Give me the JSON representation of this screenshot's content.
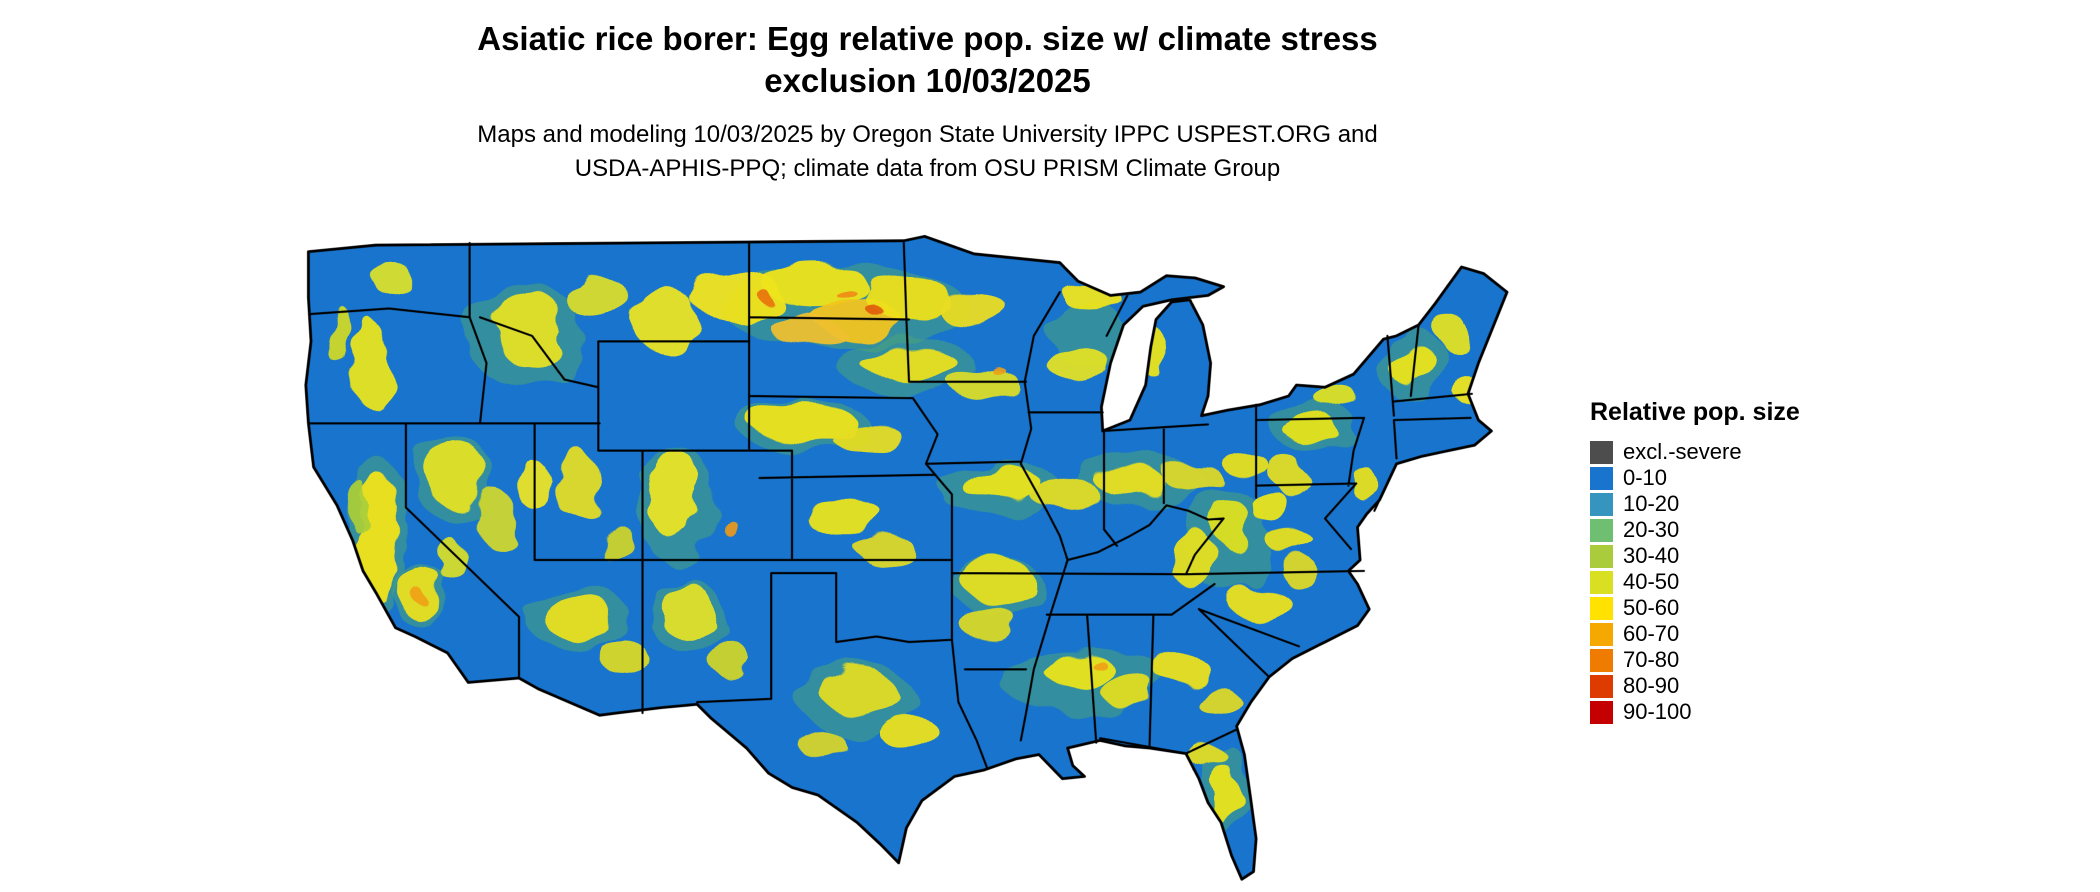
{
  "header": {
    "title_line1": "Asiatic rice borer: Egg relative pop. size w/ climate stress",
    "title_line2": "exclusion 10/03/2025",
    "subtitle_line1": "Maps and modeling 10/03/2025 by Oregon State University IPPC USPEST.ORG and",
    "subtitle_line2": "USDA-APHIS-PPQ; climate data from OSU PRISM Climate Group"
  },
  "map": {
    "region_shown": "Conterminous United States with state boundaries",
    "dominant_color": "#1874cd",
    "boundary_color": "#000000",
    "background": "#ffffff"
  },
  "legend": {
    "title": "Relative pop. size",
    "items": [
      {
        "label": "excl.-severe",
        "color": "#4d4d4d"
      },
      {
        "label": "0-10",
        "color": "#1874cd"
      },
      {
        "label": "10-20",
        "color": "#3595be"
      },
      {
        "label": "20-30",
        "color": "#6fbf73"
      },
      {
        "label": "30-40",
        "color": "#aacc3c"
      },
      {
        "label": "40-50",
        "color": "#d9e021"
      },
      {
        "label": "50-60",
        "color": "#ffe200"
      },
      {
        "label": "60-70",
        "color": "#f5a800"
      },
      {
        "label": "70-80",
        "color": "#ef7c00"
      },
      {
        "label": "80-90",
        "color": "#dd3b00"
      },
      {
        "label": "90-100",
        "color": "#c40000"
      }
    ]
  }
}
